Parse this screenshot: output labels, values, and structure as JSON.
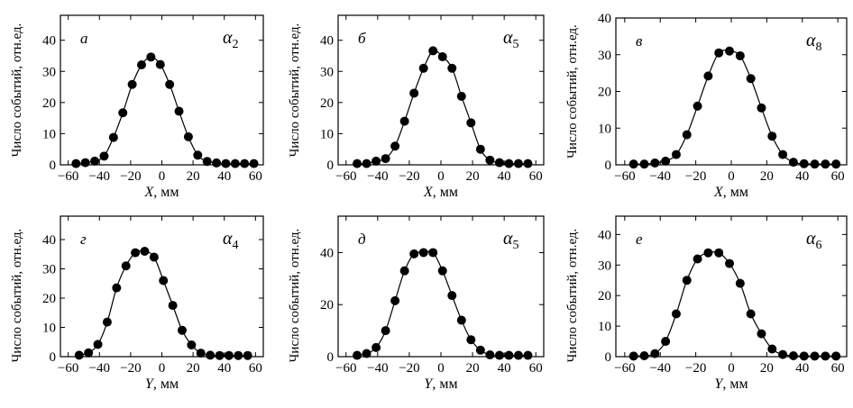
{
  "chart_data": [
    {
      "type": "line",
      "panel_label": "а",
      "annotation": "α",
      "annotation_subscript": "2",
      "xlabel_var": "X",
      "xlabel_unit": ", мм",
      "ylabel": "Число событий, отн.ед.",
      "xlim": [
        -65,
        65
      ],
      "ylim": [
        0,
        48
      ],
      "x_ticks": [
        -60,
        -40,
        -20,
        0,
        20,
        40,
        60
      ],
      "y_ticks": [
        0,
        10,
        20,
        30,
        40
      ],
      "x": [
        -55,
        -49,
        -43,
        -37,
        -31,
        -25,
        -19,
        -13,
        -7,
        -1,
        5,
        11,
        17,
        23,
        29,
        35,
        41,
        47,
        53,
        59
      ],
      "y": [
        0.4,
        0.7,
        1.2,
        2.8,
        8.8,
        16.7,
        25.8,
        32.1,
        34.6,
        32.2,
        25.8,
        17.2,
        9.0,
        3.1,
        1.1,
        0.6,
        0.4,
        0.4,
        0.4,
        0.4
      ],
      "grid": false
    },
    {
      "type": "line",
      "panel_label": "б",
      "annotation": "α",
      "annotation_subscript": "5",
      "xlabel_var": "X",
      "xlabel_unit": ", мм",
      "ylabel": "Число событий, отн.ед.",
      "xlim": [
        -65,
        65
      ],
      "ylim": [
        0,
        48
      ],
      "x_ticks": [
        -60,
        -40,
        -20,
        0,
        20,
        40,
        60
      ],
      "y_ticks": [
        0,
        10,
        20,
        30,
        40
      ],
      "x": [
        -53,
        -47,
        -41,
        -35,
        -29,
        -23,
        -17,
        -11,
        -5,
        1,
        7,
        13,
        19,
        25,
        31,
        37,
        43,
        49,
        55
      ],
      "y": [
        0.4,
        0.4,
        1.2,
        2.0,
        6.0,
        14.0,
        23.0,
        31.0,
        36.6,
        34.7,
        31.0,
        22.0,
        13.5,
        5.0,
        1.5,
        0.7,
        0.4,
        0.4,
        0.4
      ],
      "grid": false
    },
    {
      "type": "line",
      "panel_label": "в",
      "annotation": "α",
      "annotation_subscript": "8",
      "xlabel_var": "X",
      "xlabel_unit": ", мм",
      "ylabel": "Число событий, отн.ед.",
      "xlim": [
        -65,
        65
      ],
      "ylim": [
        0,
        40
      ],
      "x_ticks": [
        -60,
        -40,
        -20,
        0,
        20,
        40,
        60
      ],
      "y_ticks": [
        0,
        10,
        20,
        30,
        40
      ],
      "x": [
        -55,
        -49,
        -43,
        -37,
        -31,
        -25,
        -19,
        -13,
        -7,
        -1,
        5,
        11,
        17,
        23,
        29,
        35,
        41,
        47,
        53,
        59
      ],
      "y": [
        0.2,
        0.2,
        0.5,
        1.0,
        2.8,
        8.2,
        16.0,
        24.2,
        30.5,
        31.0,
        29.7,
        23.5,
        15.5,
        7.8,
        2.8,
        0.7,
        0.3,
        0.2,
        0.2,
        0.2
      ],
      "grid": false
    },
    {
      "type": "line",
      "panel_label": "г",
      "annotation": "α",
      "annotation_subscript": "4",
      "xlabel_var": "Y",
      "xlabel_unit": ", мм",
      "ylabel": "Число событий, отн.ед.",
      "xlim": [
        -65,
        65
      ],
      "ylim": [
        0,
        48
      ],
      "x_ticks": [
        -60,
        -40,
        -20,
        0,
        20,
        40,
        60
      ],
      "y_ticks": [
        0,
        10,
        20,
        30,
        40
      ],
      "x": [
        -53,
        -47,
        -41,
        -35,
        -29,
        -23,
        -17,
        -11,
        -5,
        1,
        7,
        13,
        19,
        25,
        31,
        37,
        43,
        49,
        55
      ],
      "y": [
        0.5,
        1.3,
        4.2,
        11.8,
        23.5,
        31.0,
        35.5,
        36.0,
        34.0,
        26.0,
        17.5,
        9.0,
        4.0,
        1.2,
        0.5,
        0.4,
        0.4,
        0.4,
        0.4
      ],
      "grid": false
    },
    {
      "type": "line",
      "panel_label": "д",
      "annotation": "α",
      "annotation_subscript": "5",
      "xlabel_var": "Y",
      "xlabel_unit": ", мм",
      "ylabel": "Число событий, отн.ед.",
      "xlim": [
        -65,
        65
      ],
      "ylim": [
        0,
        54
      ],
      "x_ticks": [
        -60,
        -40,
        -20,
        0,
        20,
        40,
        60
      ],
      "y_ticks": [
        0,
        20,
        40
      ],
      "x": [
        -53,
        -47,
        -41,
        -35,
        -29,
        -23,
        -17,
        -11,
        -5,
        1,
        7,
        13,
        19,
        25,
        31,
        37,
        43,
        49,
        55
      ],
      "y": [
        0.5,
        1.2,
        3.5,
        10.0,
        21.5,
        33.0,
        39.5,
        40.0,
        40.0,
        33.0,
        23.5,
        14.0,
        6.5,
        2.5,
        0.7,
        0.5,
        0.5,
        0.5,
        0.5
      ],
      "grid": false
    },
    {
      "type": "line",
      "panel_label": "е",
      "annotation": "α",
      "annotation_subscript": "6",
      "xlabel_var": "Y",
      "xlabel_unit": ", мм",
      "ylabel": "Число событий, отн.ед.",
      "xlim": [
        -65,
        65
      ],
      "ylim": [
        0,
        46
      ],
      "x_ticks": [
        -60,
        -40,
        -20,
        0,
        20,
        40,
        60
      ],
      "y_ticks": [
        0,
        10,
        20,
        30,
        40
      ],
      "x": [
        -55,
        -49,
        -43,
        -37,
        -31,
        -25,
        -19,
        -13,
        -7,
        -1,
        5,
        11,
        17,
        23,
        29,
        35,
        41,
        47,
        53,
        59
      ],
      "y": [
        0.2,
        0.3,
        1.0,
        5.0,
        14.0,
        25.0,
        32.0,
        34.0,
        34.0,
        30.5,
        24.0,
        14.0,
        7.5,
        2.5,
        0.7,
        0.3,
        0.2,
        0.2,
        0.2,
        0.2
      ],
      "grid": false
    }
  ]
}
